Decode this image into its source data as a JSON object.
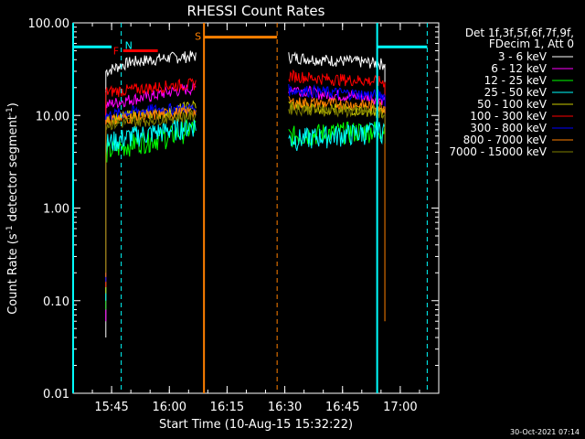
{
  "chart_data": {
    "type": "line",
    "title": "RHESSI Count Rates",
    "xlabel": "Start Time (10-Aug-15 15:32:22)",
    "ylabel_main": "Count Rate (s",
    "ylabel_sup1": "-1",
    "ylabel_mid": " detector segment",
    "ylabel_sup2": "-1",
    "ylabel_end": ")",
    "y_scale": "log",
    "ylim": [
      0.01,
      100
    ],
    "yticks": [
      {
        "value": 0.01,
        "label": "0.01"
      },
      {
        "value": 0.1,
        "label": "0.10"
      },
      {
        "value": 1,
        "label": "1.00"
      },
      {
        "value": 10,
        "label": "10.00"
      },
      {
        "value": 100,
        "label": "100.00"
      }
    ],
    "xlim": [
      "15:35",
      "17:10"
    ],
    "xticks": [
      {
        "value": "15:45",
        "label": "15:45"
      },
      {
        "value": "16:00",
        "label": "16:00"
      },
      {
        "value": "16:15",
        "label": "16:15"
      },
      {
        "value": "16:30",
        "label": "16:30"
      },
      {
        "value": "16:45",
        "label": "16:45"
      },
      {
        "value": "17:00",
        "label": "17:00"
      }
    ],
    "legend": {
      "header": [
        "Det 1f,3f,5f,6f,7f,9f,",
        "FDecim 1, Att 0"
      ],
      "placement": "right"
    },
    "series": [
      {
        "name": "3 - 6 keV",
        "color": "#ffffff",
        "seg1": [
          [
            "15:43:30",
            30
          ],
          [
            "15:50",
            38
          ],
          [
            "15:55",
            40
          ],
          [
            "16:00",
            42
          ],
          [
            "16:07",
            44
          ]
        ],
        "seg2": [
          [
            "16:31",
            43
          ],
          [
            "16:40",
            40
          ],
          [
            "16:50",
            38
          ],
          [
            "16:56",
            36
          ]
        ]
      },
      {
        "name": "6 - 12 keV",
        "color": "#ff00ff",
        "seg1": [
          [
            "15:43:30",
            13
          ],
          [
            "15:50",
            15
          ],
          [
            "15:55",
            16
          ],
          [
            "16:00",
            18
          ],
          [
            "16:07",
            20
          ]
        ],
        "seg2": [
          [
            "16:31",
            20
          ],
          [
            "16:40",
            17
          ],
          [
            "16:50",
            16
          ],
          [
            "16:56",
            15
          ]
        ]
      },
      {
        "name": "12 - 25 keV",
        "color": "#00ff00",
        "seg1": [
          [
            "15:43:30",
            4
          ],
          [
            "15:50",
            5
          ],
          [
            "15:55",
            5.5
          ],
          [
            "16:00",
            6
          ],
          [
            "16:07",
            7.5
          ]
        ],
        "seg2": [
          [
            "16:31",
            6
          ],
          [
            "16:40",
            6.5
          ],
          [
            "16:50",
            6.8
          ],
          [
            "16:56",
            7.2
          ]
        ]
      },
      {
        "name": "25 - 50 keV",
        "color": "#00ffff",
        "seg1": [
          [
            "15:43:30",
            5
          ],
          [
            "15:50",
            6
          ],
          [
            "15:55",
            6.5
          ],
          [
            "16:00",
            7
          ],
          [
            "16:07",
            8
          ]
        ],
        "seg2": [
          [
            "16:31",
            5.5
          ],
          [
            "16:40",
            6
          ],
          [
            "16:50",
            6.5
          ],
          [
            "16:56",
            7
          ]
        ]
      },
      {
        "name": "50 - 100 keV",
        "color": "#cccc00",
        "seg1": [
          [
            "15:43:30",
            9
          ],
          [
            "15:50",
            10
          ],
          [
            "15:55",
            10.5
          ],
          [
            "16:00",
            11
          ],
          [
            "16:07",
            13
          ]
        ],
        "seg2": [
          [
            "16:31",
            13
          ],
          [
            "16:40",
            12
          ],
          [
            "16:50",
            11.5
          ],
          [
            "16:56",
            11
          ]
        ]
      },
      {
        "name": "100 - 300 keV",
        "color": "#ff0000",
        "seg1": [
          [
            "15:43:30",
            18
          ],
          [
            "15:50",
            19
          ],
          [
            "15:55",
            20
          ],
          [
            "16:00",
            21
          ],
          [
            "16:07",
            22
          ]
        ],
        "seg2": [
          [
            "16:31",
            27
          ],
          [
            "16:40",
            25
          ],
          [
            "16:50",
            24
          ],
          [
            "16:56",
            23
          ]
        ]
      },
      {
        "name": "300 - 800 keV",
        "color": "#0000ff",
        "seg1": [
          [
            "15:43:30",
            10
          ],
          [
            "15:50",
            11
          ],
          [
            "15:55",
            11.5
          ],
          [
            "16:00",
            11.8
          ],
          [
            "16:07",
            12
          ]
        ],
        "seg2": [
          [
            "16:31",
            19
          ],
          [
            "16:40",
            18
          ],
          [
            "16:50",
            17
          ],
          [
            "16:56",
            16.5
          ]
        ]
      },
      {
        "name": "800 - 7000 keV",
        "color": "#ff8000",
        "seg1": [
          [
            "15:43:30",
            9
          ],
          [
            "15:50",
            9.5
          ],
          [
            "15:55",
            10
          ],
          [
            "16:00",
            10.5
          ],
          [
            "16:07",
            11
          ]
        ],
        "seg2": [
          [
            "16:31",
            14
          ],
          [
            "16:40",
            13.5
          ],
          [
            "16:50",
            13
          ],
          [
            "16:56",
            12.5
          ]
        ]
      },
      {
        "name": "7000 - 15000 keV",
        "color": "#808000",
        "seg1": [
          [
            "15:43:30",
            8
          ],
          [
            "15:50",
            8.5
          ],
          [
            "15:55",
            9
          ],
          [
            "16:00",
            9.5
          ],
          [
            "16:07",
            10
          ]
        ],
        "seg2": [
          [
            "16:31",
            12
          ],
          [
            "16:40",
            11.5
          ],
          [
            "16:50",
            11
          ],
          [
            "16:56",
            10.5
          ]
        ]
      }
    ],
    "annotations": {
      "night": {
        "label": "N",
        "color": "#00ffff",
        "solid_start": "15:35",
        "dashed_end": "15:47:30",
        "bar_y": 55,
        "bar_start": "15:35",
        "bar_end": "15:45"
      },
      "night2": {
        "color": "#00ffff",
        "solid_start": "16:54",
        "dashed_end": "17:07",
        "bar_y": 55,
        "bar_start": "16:54",
        "bar_end": "17:07"
      },
      "saa": {
        "label": "S",
        "color": "#ff8000",
        "solid_start": "16:09",
        "dashed_end": "16:28",
        "bar_y": 70,
        "bar_start": "16:09",
        "bar_end": "16:28"
      },
      "flare": {
        "label": "F",
        "color": "#ff0000",
        "bar_y": 50,
        "bar_start": "15:48",
        "bar_end": "15:57"
      }
    },
    "grid": false
  },
  "footer": {
    "timestamp": "30-Oct-2021 07:14"
  }
}
